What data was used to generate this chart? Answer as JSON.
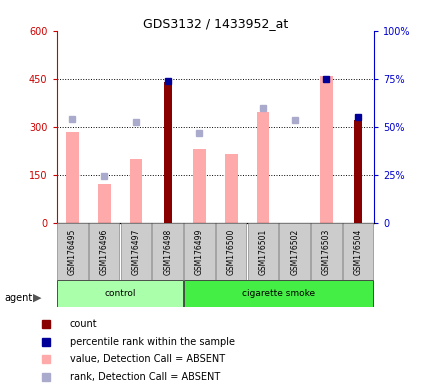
{
  "title": "GDS3132 / 1433952_at",
  "samples": [
    "GSM176495",
    "GSM176496",
    "GSM176497",
    "GSM176498",
    "GSM176499",
    "GSM176500",
    "GSM176501",
    "GSM176502",
    "GSM176503",
    "GSM176504"
  ],
  "groups": [
    "control",
    "control",
    "control",
    "control",
    "cigarette smoke",
    "cigarette smoke",
    "cigarette smoke",
    "cigarette smoke",
    "cigarette smoke",
    "cigarette smoke"
  ],
  "count_values": [
    null,
    null,
    null,
    440,
    null,
    null,
    null,
    null,
    null,
    320
  ],
  "percentile_rank_values": [
    null,
    null,
    null,
    74,
    null,
    null,
    null,
    null,
    75,
    55
  ],
  "value_absent": [
    285,
    120,
    200,
    null,
    230,
    215,
    345,
    null,
    460,
    null
  ],
  "rank_absent_left": [
    325,
    145,
    315,
    null,
    280,
    null,
    360,
    320,
    null,
    null
  ],
  "ylim_left": [
    0,
    600
  ],
  "ylim_right": [
    0,
    100
  ],
  "yticks_left": [
    0,
    150,
    300,
    450,
    600
  ],
  "ytick_labels_left": [
    "0",
    "150",
    "300",
    "450",
    "600"
  ],
  "ytick_labels_right": [
    "0",
    "25%",
    "50%",
    "75%",
    "100%"
  ],
  "left_axis_color": "#cc0000",
  "right_axis_color": "#0000cc",
  "bar_color_count": "#880000",
  "bar_color_absent": "#ffaaaa",
  "dot_color_percentile": "#000099",
  "dot_color_rank_absent": "#aaaacc",
  "group_colors": {
    "control": "#aaffaa",
    "cigarette smoke": "#44ee44"
  },
  "legend_items": [
    {
      "color": "#880000",
      "label": "count",
      "marker": "s"
    },
    {
      "color": "#000099",
      "label": "percentile rank within the sample",
      "marker": "s"
    },
    {
      "color": "#ffaaaa",
      "label": "value, Detection Call = ABSENT",
      "marker": "s"
    },
    {
      "color": "#aaaacc",
      "label": "rank, Detection Call = ABSENT",
      "marker": "s"
    }
  ]
}
